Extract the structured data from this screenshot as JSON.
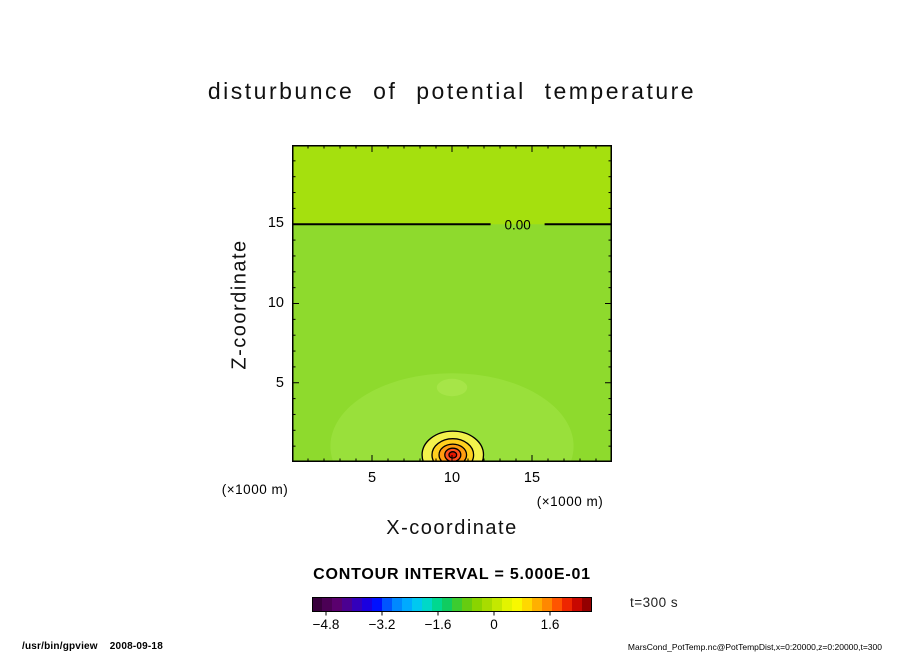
{
  "chart_data": {
    "type": "heatmap",
    "title": "disturbunce of potential temperature",
    "xlabel": "X-coordinate",
    "ylabel": "Z-coordinate",
    "x_unit_label": "(×1000 m)",
    "z_unit_label": "(×1000 m)",
    "xlim": [
      0,
      20
    ],
    "ylim": [
      0,
      20
    ],
    "xticks": [
      5,
      10,
      15
    ],
    "yticks": [
      5,
      10,
      15
    ],
    "grid": false,
    "contour_interval": 0.5,
    "contour_interval_label": "CONTOUR INTERVAL = 5.000E-01",
    "time_label": "t=300 s",
    "zero_contour": {
      "z": 15,
      "label": "0.00",
      "label_x": 14.1
    },
    "background": {
      "upper_color": "#a5e00e",
      "lower_color": "#8eda2d",
      "boundary_z": 15
    },
    "soft_regions": [
      {
        "cx": 10,
        "cz": 1.0,
        "rx": 7.6,
        "rz": 4.6,
        "color": "#99e03b"
      },
      {
        "cx": 10,
        "cz": 4.7,
        "rx": 0.95,
        "rz": 0.55,
        "color": "#a6e548"
      }
    ],
    "bubble": {
      "cx": 10.05,
      "cz": 0.45,
      "rings": [
        {
          "rx": 1.92,
          "rz": 1.5,
          "fill": "#f2f24c"
        },
        {
          "rx": 1.3,
          "rz": 1.02,
          "fill": "#ffd01e"
        },
        {
          "rx": 0.86,
          "rz": 0.68,
          "fill": "#ff9c10"
        },
        {
          "rx": 0.5,
          "rz": 0.42,
          "fill": "#ff4f1e"
        },
        {
          "rx": 0.24,
          "rz": 0.2,
          "fill": "#e31400"
        }
      ]
    },
    "colorbar": {
      "min": -5.2,
      "max": 2.8,
      "tick_values": [
        -4.8,
        -3.2,
        -1.6,
        0,
        1.6
      ],
      "tick_labels": [
        "−4.8",
        "−3.2",
        "−1.6",
        "0",
        "1.6"
      ],
      "cells": [
        "#38003c",
        "#4b0055",
        "#5a006e",
        "#4b0091",
        "#3300bb",
        "#1a00e0",
        "#0011ff",
        "#0055ff",
        "#0088ff",
        "#00aaff",
        "#00c8f0",
        "#00d8c8",
        "#00d890",
        "#10cc60",
        "#3ccc30",
        "#66cc10",
        "#8ad400",
        "#a8dc00",
        "#c4e800",
        "#e2f400",
        "#f8f800",
        "#ffd800",
        "#ffb000",
        "#ff8800",
        "#ff5500",
        "#ee2600",
        "#c80800",
        "#940000"
      ]
    }
  },
  "footer": {
    "program": "/usr/bin/gpview",
    "date": "2008-09-18",
    "source": "MarsCond_PotTemp.nc@PotTempDist,x=0:20000,z=0:20000,t=300"
  }
}
